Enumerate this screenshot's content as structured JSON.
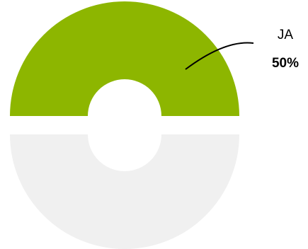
{
  "chart_data": {
    "type": "pie",
    "variant": "split-donut",
    "slices": [
      {
        "label": "JA",
        "value": 50,
        "value_label": "50%",
        "color": "#8db600"
      },
      {
        "label": "",
        "value": 50,
        "value_label": "",
        "color": "#f0f0f0"
      }
    ]
  }
}
